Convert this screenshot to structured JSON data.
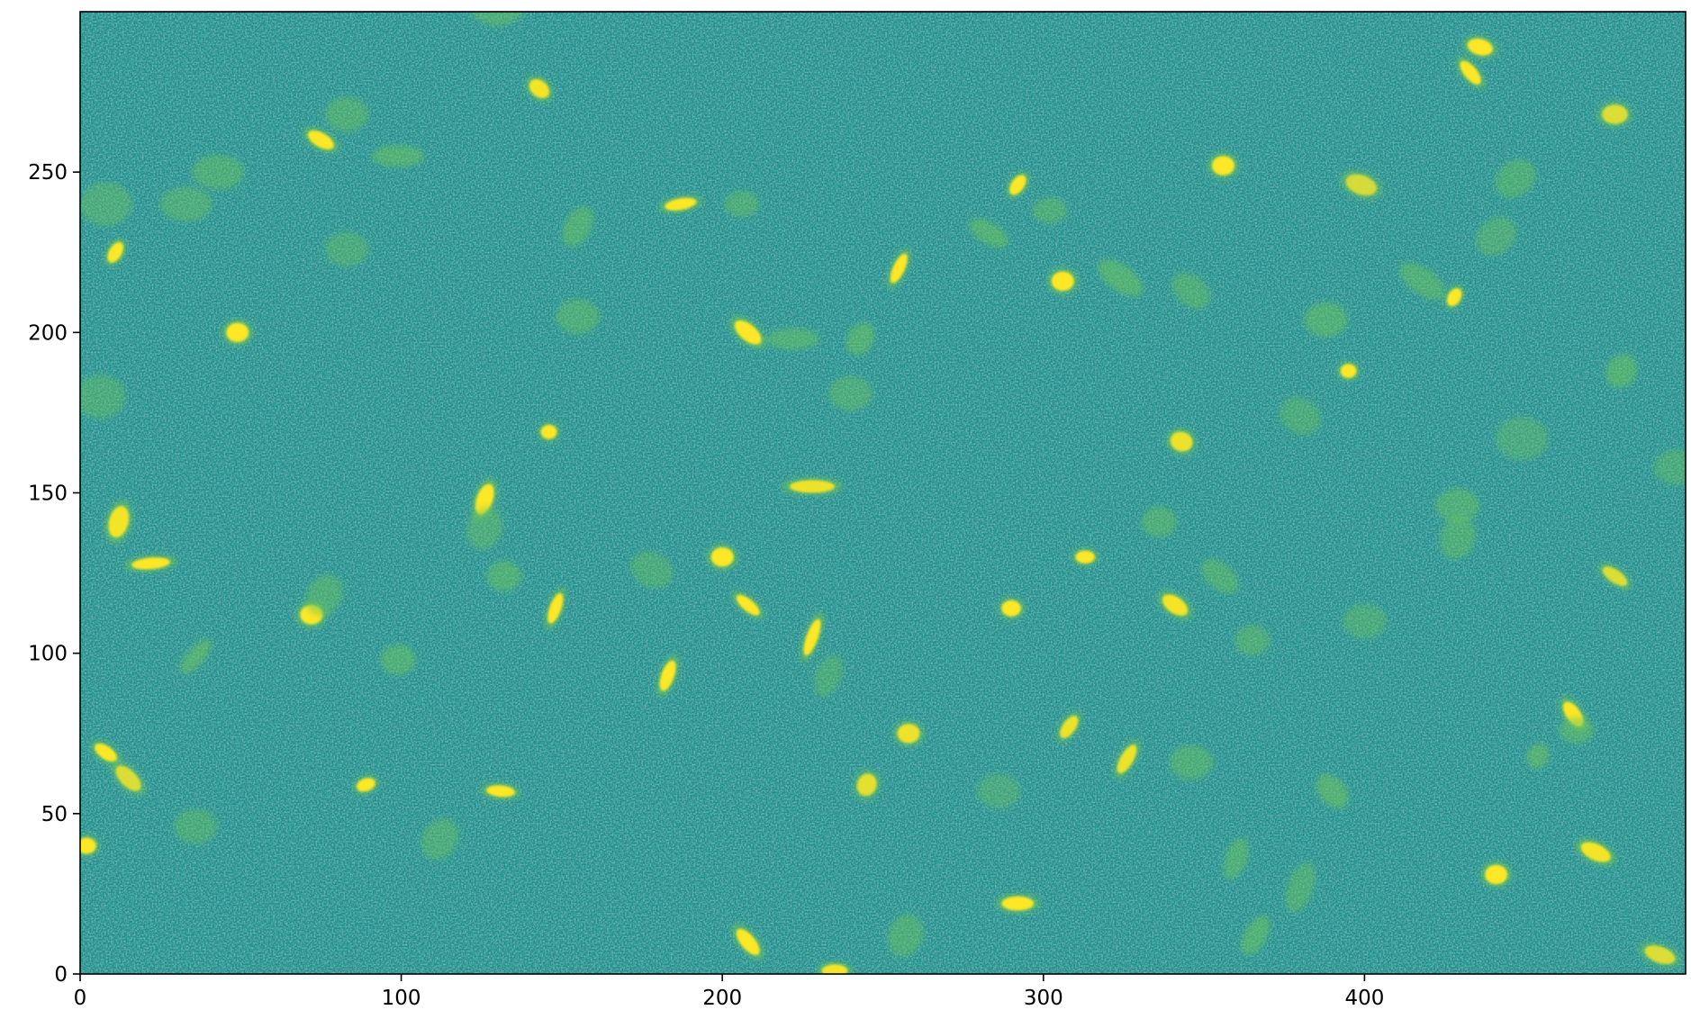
{
  "chart_data": {
    "type": "heatmap",
    "title": "",
    "xlabel": "",
    "ylabel": "",
    "xlim": [
      0,
      500
    ],
    "ylim": [
      0,
      300
    ],
    "x_ticks": [
      0,
      100,
      200,
      300,
      400
    ],
    "y_ticks": [
      0,
      50,
      100,
      150,
      200,
      250
    ],
    "x_tick_labels": [
      "0",
      "100",
      "200",
      "300",
      "400"
    ],
    "y_tick_labels": [
      "0",
      "50",
      "100",
      "150",
      "200",
      "250"
    ],
    "origin": "lower",
    "colormap": "viridis",
    "colors": {
      "background": "#1f8f8b",
      "faint_source": "#6cc55c",
      "bright_source": "#fde725"
    },
    "grid": false,
    "sources": [
      {
        "x": 143,
        "y": 276,
        "a": 3.5,
        "b": 2.5,
        "angle": -40,
        "bright": 0.95
      },
      {
        "x": 75,
        "y": 260,
        "a": 4.5,
        "b": 2.2,
        "angle": -30,
        "bright": 1.0
      },
      {
        "x": 83,
        "y": 268,
        "a": 5,
        "b": 4,
        "angle": 0,
        "bright": 0.45
      },
      {
        "x": 99,
        "y": 255,
        "a": 6,
        "b": 2.5,
        "angle": 0,
        "bright": 0.6
      },
      {
        "x": 43,
        "y": 250,
        "a": 6,
        "b": 4,
        "angle": 0,
        "bright": 0.45
      },
      {
        "x": 33,
        "y": 240,
        "a": 6,
        "b": 4,
        "angle": 0,
        "bright": 0.4
      },
      {
        "x": 8,
        "y": 240,
        "a": 6,
        "b": 5,
        "angle": 0,
        "bright": 0.4
      },
      {
        "x": 11,
        "y": 225,
        "a": 3.5,
        "b": 2,
        "angle": 60,
        "bright": 1.0
      },
      {
        "x": 83,
        "y": 226,
        "a": 5,
        "b": 4,
        "angle": 0,
        "bright": 0.35
      },
      {
        "x": 49,
        "y": 200,
        "a": 3.5,
        "b": 3,
        "angle": 0,
        "bright": 1.0
      },
      {
        "x": 6,
        "y": 180,
        "a": 6,
        "b": 5,
        "angle": 0,
        "bright": 0.35
      },
      {
        "x": 155,
        "y": 233,
        "a": 5,
        "b": 3,
        "angle": 60,
        "bright": 0.55
      },
      {
        "x": 187,
        "y": 240,
        "a": 5,
        "b": 1.8,
        "angle": 10,
        "bright": 1.0
      },
      {
        "x": 206,
        "y": 240,
        "a": 4,
        "b": 3,
        "angle": 0,
        "bright": 0.45
      },
      {
        "x": 155,
        "y": 205,
        "a": 5,
        "b": 4,
        "angle": 0,
        "bright": 0.45
      },
      {
        "x": 208,
        "y": 200,
        "a": 5,
        "b": 2.5,
        "angle": -40,
        "bright": 1.0
      },
      {
        "x": 222,
        "y": 198,
        "a": 6,
        "b": 2.5,
        "angle": 0,
        "bright": 0.55
      },
      {
        "x": 243,
        "y": 198,
        "a": 4,
        "b": 3,
        "angle": 60,
        "bright": 0.6
      },
      {
        "x": 240,
        "y": 181,
        "a": 5,
        "b": 4,
        "angle": 0,
        "bright": 0.4
      },
      {
        "x": 146,
        "y": 169,
        "a": 2.5,
        "b": 2.2,
        "angle": 0,
        "bright": 1.0
      },
      {
        "x": 255,
        "y": 220,
        "a": 5,
        "b": 1.8,
        "angle": 65,
        "bright": 1.0
      },
      {
        "x": 292,
        "y": 246,
        "a": 3.5,
        "b": 2,
        "angle": 55,
        "bright": 1.0
      },
      {
        "x": 302,
        "y": 238,
        "a": 4,
        "b": 3,
        "angle": 0,
        "bright": 0.45
      },
      {
        "x": 283,
        "y": 231,
        "a": 5,
        "b": 2.5,
        "angle": -30,
        "bright": 0.6
      },
      {
        "x": 306,
        "y": 216,
        "a": 3.5,
        "b": 3,
        "angle": 0,
        "bright": 1.0
      },
      {
        "x": 324,
        "y": 217,
        "a": 6,
        "b": 3,
        "angle": -35,
        "bright": 0.65
      },
      {
        "x": 346,
        "y": 213,
        "a": 5,
        "b": 3.5,
        "angle": -40,
        "bright": 0.45
      },
      {
        "x": 356,
        "y": 252,
        "a": 3.5,
        "b": 3,
        "angle": 0,
        "bright": 1.0
      },
      {
        "x": 399,
        "y": 246,
        "a": 5,
        "b": 3,
        "angle": -20,
        "bright": 0.75
      },
      {
        "x": 436,
        "y": 289,
        "a": 4,
        "b": 2.5,
        "angle": -15,
        "bright": 1.0
      },
      {
        "x": 433,
        "y": 281,
        "a": 4.5,
        "b": 2,
        "angle": -50,
        "bright": 1.0
      },
      {
        "x": 478,
        "y": 268,
        "a": 4,
        "b": 3,
        "angle": 0,
        "bright": 0.8
      },
      {
        "x": 447,
        "y": 248,
        "a": 5,
        "b": 4,
        "angle": 40,
        "bright": 0.45
      },
      {
        "x": 441,
        "y": 230,
        "a": 5,
        "b": 4,
        "angle": 40,
        "bright": 0.4
      },
      {
        "x": 418,
        "y": 216,
        "a": 6,
        "b": 3,
        "angle": -35,
        "bright": 0.55
      },
      {
        "x": 428,
        "y": 211,
        "a": 3,
        "b": 2,
        "angle": 60,
        "bright": 1.0
      },
      {
        "x": 388,
        "y": 204,
        "a": 5,
        "b": 4,
        "angle": 0,
        "bright": 0.55
      },
      {
        "x": 395,
        "y": 188,
        "a": 2.5,
        "b": 2.2,
        "angle": 0,
        "bright": 1.0
      },
      {
        "x": 380,
        "y": 174,
        "a": 5,
        "b": 4,
        "angle": -30,
        "bright": 0.35
      },
      {
        "x": 480,
        "y": 188,
        "a": 4,
        "b": 3.5,
        "angle": 60,
        "bright": 0.6
      },
      {
        "x": 343,
        "y": 166,
        "a": 3.5,
        "b": 3,
        "angle": -20,
        "bright": 0.9
      },
      {
        "x": 449,
        "y": 167,
        "a": 6,
        "b": 5,
        "angle": 0,
        "bright": 0.3
      },
      {
        "x": 497,
        "y": 158,
        "a": 5,
        "b": 4,
        "angle": 0,
        "bright": 0.35
      },
      {
        "x": 12,
        "y": 141,
        "a": 5,
        "b": 3,
        "angle": 75,
        "bright": 0.95
      },
      {
        "x": 126,
        "y": 148,
        "a": 5,
        "b": 2.5,
        "angle": 70,
        "bright": 1.0
      },
      {
        "x": 126,
        "y": 139,
        "a": 5,
        "b": 4,
        "angle": 70,
        "bright": 0.4
      },
      {
        "x": 22,
        "y": 128,
        "a": 6,
        "b": 1.8,
        "angle": 5,
        "bright": 1.0
      },
      {
        "x": 132,
        "y": 124,
        "a": 4,
        "b": 3.5,
        "angle": 0,
        "bright": 0.55
      },
      {
        "x": 178,
        "y": 126,
        "a": 5,
        "b": 4,
        "angle": -30,
        "bright": 0.35
      },
      {
        "x": 200,
        "y": 130,
        "a": 3.5,
        "b": 3,
        "angle": 0,
        "bright": 1.0
      },
      {
        "x": 228,
        "y": 152,
        "a": 7,
        "b": 2,
        "angle": 0,
        "bright": 0.9
      },
      {
        "x": 148,
        "y": 114,
        "a": 5,
        "b": 1.8,
        "angle": 70,
        "bright": 1.0
      },
      {
        "x": 208,
        "y": 115,
        "a": 4.5,
        "b": 1.8,
        "angle": -40,
        "bright": 1.0
      },
      {
        "x": 72,
        "y": 112,
        "a": 3.5,
        "b": 3,
        "angle": 0,
        "bright": 1.0
      },
      {
        "x": 76,
        "y": 118,
        "a": 5,
        "b": 4,
        "angle": 60,
        "bright": 0.45
      },
      {
        "x": 36,
        "y": 99,
        "a": 5,
        "b": 2,
        "angle": 50,
        "bright": 0.7
      },
      {
        "x": 99,
        "y": 98,
        "a": 4,
        "b": 3.5,
        "angle": 0,
        "bright": 0.55
      },
      {
        "x": 183,
        "y": 93,
        "a": 5,
        "b": 2,
        "angle": 70,
        "bright": 1.0
      },
      {
        "x": 228,
        "y": 105,
        "a": 6,
        "b": 1.8,
        "angle": 70,
        "bright": 1.0
      },
      {
        "x": 233,
        "y": 93,
        "a": 5,
        "b": 3,
        "angle": 70,
        "bright": 0.35
      },
      {
        "x": 313,
        "y": 130,
        "a": 3,
        "b": 2,
        "angle": 0,
        "bright": 1.0
      },
      {
        "x": 336,
        "y": 141,
        "a": 4,
        "b": 3.5,
        "angle": 0,
        "bright": 0.5
      },
      {
        "x": 355,
        "y": 124,
        "a": 5,
        "b": 3,
        "angle": -40,
        "bright": 0.5
      },
      {
        "x": 290,
        "y": 114,
        "a": 3,
        "b": 2.5,
        "angle": 0,
        "bright": 1.0
      },
      {
        "x": 341,
        "y": 115,
        "a": 4.5,
        "b": 2.5,
        "angle": -35,
        "bright": 0.95
      },
      {
        "x": 365,
        "y": 104,
        "a": 4,
        "b": 3.5,
        "angle": 0,
        "bright": 0.45
      },
      {
        "x": 400,
        "y": 110,
        "a": 5,
        "b": 4,
        "angle": 0,
        "bright": 0.35
      },
      {
        "x": 429,
        "y": 146,
        "a": 5,
        "b": 4,
        "angle": 0,
        "bright": 0.5
      },
      {
        "x": 429,
        "y": 136,
        "a": 5,
        "b": 4,
        "angle": 70,
        "bright": 0.45
      },
      {
        "x": 478,
        "y": 124,
        "a": 4.5,
        "b": 2,
        "angle": -35,
        "bright": 0.8
      },
      {
        "x": 8,
        "y": 69,
        "a": 4,
        "b": 2,
        "angle": -35,
        "bright": 1.0
      },
      {
        "x": 15,
        "y": 61,
        "a": 5,
        "b": 2.5,
        "angle": -45,
        "bright": 0.8
      },
      {
        "x": 89,
        "y": 59,
        "a": 3,
        "b": 2,
        "angle": 20,
        "bright": 1.0
      },
      {
        "x": 131,
        "y": 57,
        "a": 4.5,
        "b": 1.8,
        "angle": -5,
        "bright": 1.0
      },
      {
        "x": 36,
        "y": 46,
        "a": 5,
        "b": 4,
        "angle": 0,
        "bright": 0.35
      },
      {
        "x": 112,
        "y": 42,
        "a": 5,
        "b": 4,
        "angle": 60,
        "bright": 0.4
      },
      {
        "x": 2,
        "y": 40,
        "a": 3,
        "b": 2.5,
        "angle": 0,
        "bright": 1.0
      },
      {
        "x": 258,
        "y": 75,
        "a": 3.5,
        "b": 3,
        "angle": 0,
        "bright": 0.9
      },
      {
        "x": 245,
        "y": 59,
        "a": 3.5,
        "b": 3,
        "angle": 70,
        "bright": 0.85
      },
      {
        "x": 286,
        "y": 57,
        "a": 5,
        "b": 4,
        "angle": 0,
        "bright": 0.3
      },
      {
        "x": 308,
        "y": 77,
        "a": 4,
        "b": 2,
        "angle": 55,
        "bright": 0.9
      },
      {
        "x": 326,
        "y": 67,
        "a": 5,
        "b": 2,
        "angle": 60,
        "bright": 0.9
      },
      {
        "x": 346,
        "y": 66,
        "a": 5,
        "b": 4,
        "angle": 0,
        "bright": 0.45
      },
      {
        "x": 390,
        "y": 57,
        "a": 4.5,
        "b": 3,
        "angle": -50,
        "bright": 0.7
      },
      {
        "x": 465,
        "y": 81,
        "a": 4.5,
        "b": 2.2,
        "angle": -55,
        "bright": 1.0
      },
      {
        "x": 466,
        "y": 76,
        "a": 4,
        "b": 3,
        "angle": 0,
        "bright": 0.55
      },
      {
        "x": 454,
        "y": 68,
        "a": 3,
        "b": 2.5,
        "angle": 60,
        "bright": 0.7
      },
      {
        "x": 472,
        "y": 38,
        "a": 5,
        "b": 2.5,
        "angle": -25,
        "bright": 0.95
      },
      {
        "x": 441,
        "y": 31,
        "a": 3.5,
        "b": 3,
        "angle": 0,
        "bright": 1.0
      },
      {
        "x": 360,
        "y": 36,
        "a": 5,
        "b": 2.5,
        "angle": 70,
        "bright": 0.55
      },
      {
        "x": 380,
        "y": 27,
        "a": 6,
        "b": 3,
        "angle": 70,
        "bright": 0.45
      },
      {
        "x": 292,
        "y": 22,
        "a": 5,
        "b": 2.2,
        "angle": 0,
        "bright": 1.0
      },
      {
        "x": 257,
        "y": 12,
        "a": 5,
        "b": 4,
        "angle": 70,
        "bright": 0.45
      },
      {
        "x": 208,
        "y": 10,
        "a": 5,
        "b": 2.2,
        "angle": -50,
        "bright": 1.0
      },
      {
        "x": 235,
        "y": 1,
        "a": 4,
        "b": 2,
        "angle": 0,
        "bright": 0.95
      },
      {
        "x": 366,
        "y": 12,
        "a": 5,
        "b": 2.5,
        "angle": 60,
        "bright": 0.65
      },
      {
        "x": 492,
        "y": 6,
        "a": 5,
        "b": 2.5,
        "angle": -20,
        "bright": 0.8
      },
      {
        "x": 130,
        "y": 301,
        "a": 6,
        "b": 4,
        "angle": 0,
        "bright": 0.5
      }
    ]
  }
}
